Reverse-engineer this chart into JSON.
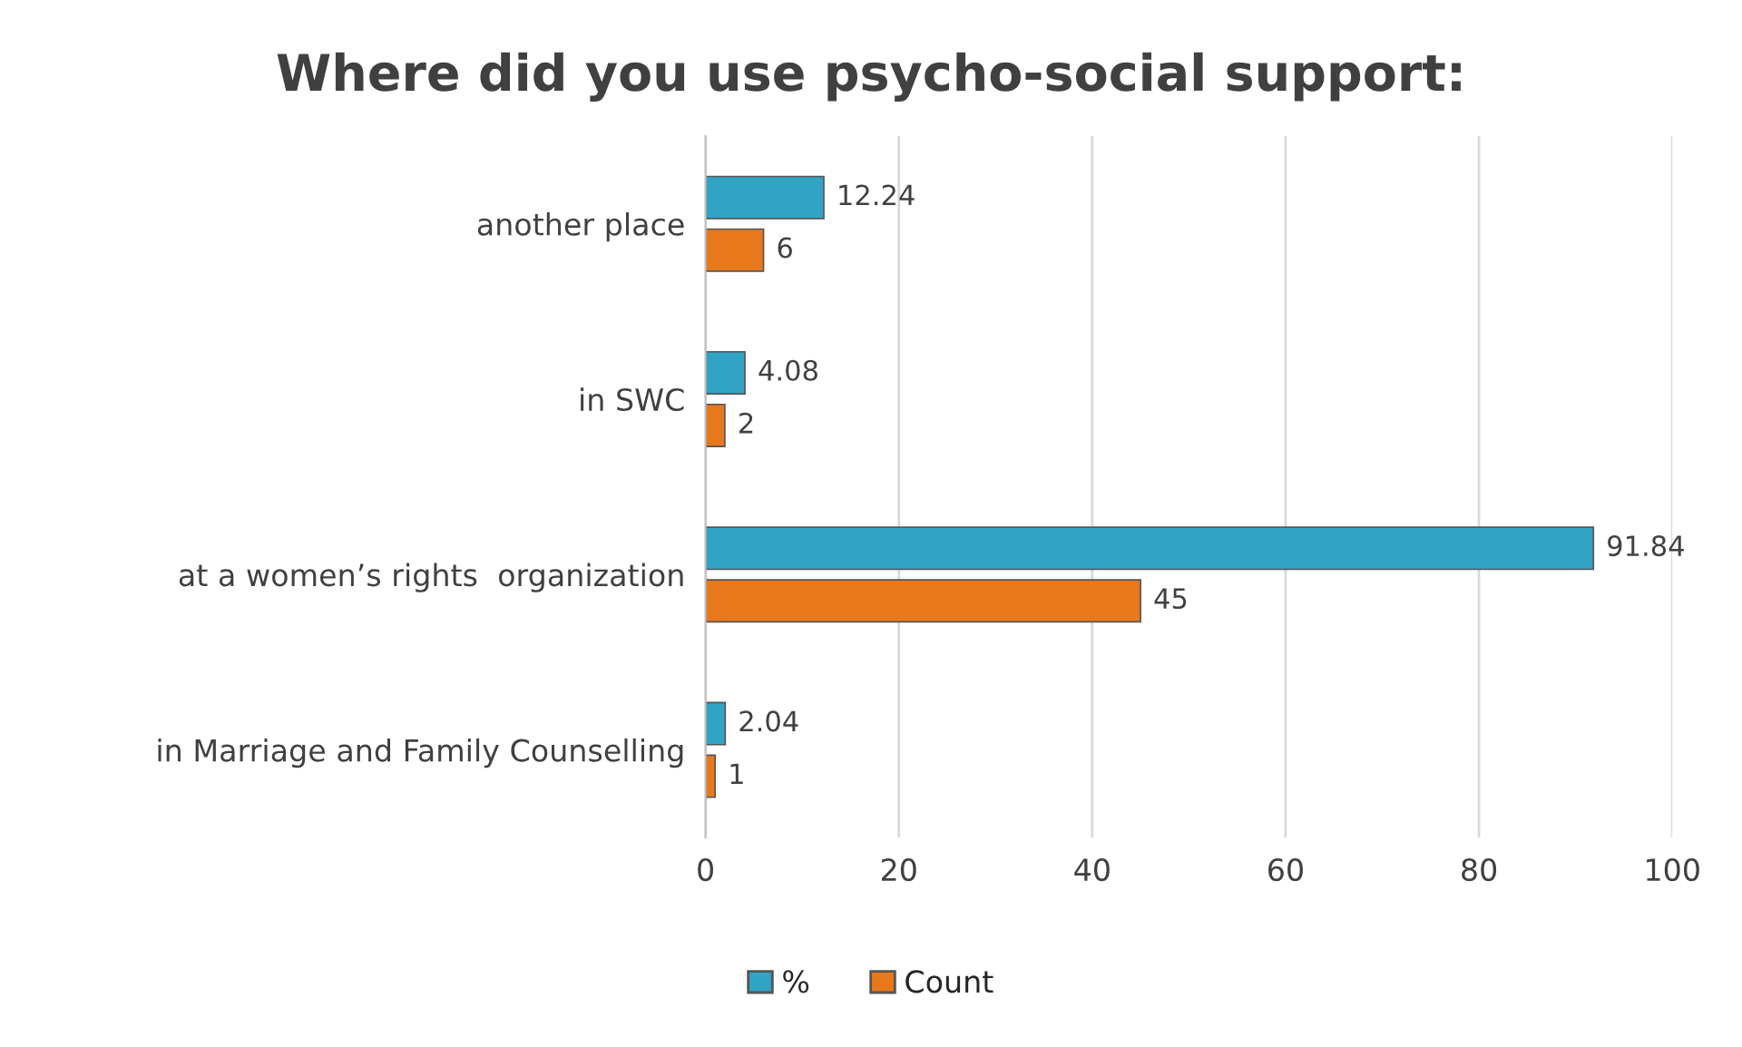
{
  "chart_data": {
    "type": "bar",
    "orientation": "horizontal",
    "title": "Where did you use psycho-social support:",
    "categories": [
      "another place",
      "in SWC",
      "at a women’s rights  organization",
      "in Marriage and Family Counselling"
    ],
    "series": [
      {
        "name": "%",
        "color": "#31a3c4",
        "values": [
          12.24,
          4.08,
          91.84,
          2.04
        ]
      },
      {
        "name": "Count",
        "color": "#e8781c",
        "values": [
          6,
          2,
          45,
          1
        ]
      }
    ],
    "xlim": [
      0,
      100
    ],
    "xticks": [
      0,
      20,
      40,
      60,
      80,
      100
    ],
    "grid": "x",
    "legend": "bottom",
    "data_labels": true
  }
}
